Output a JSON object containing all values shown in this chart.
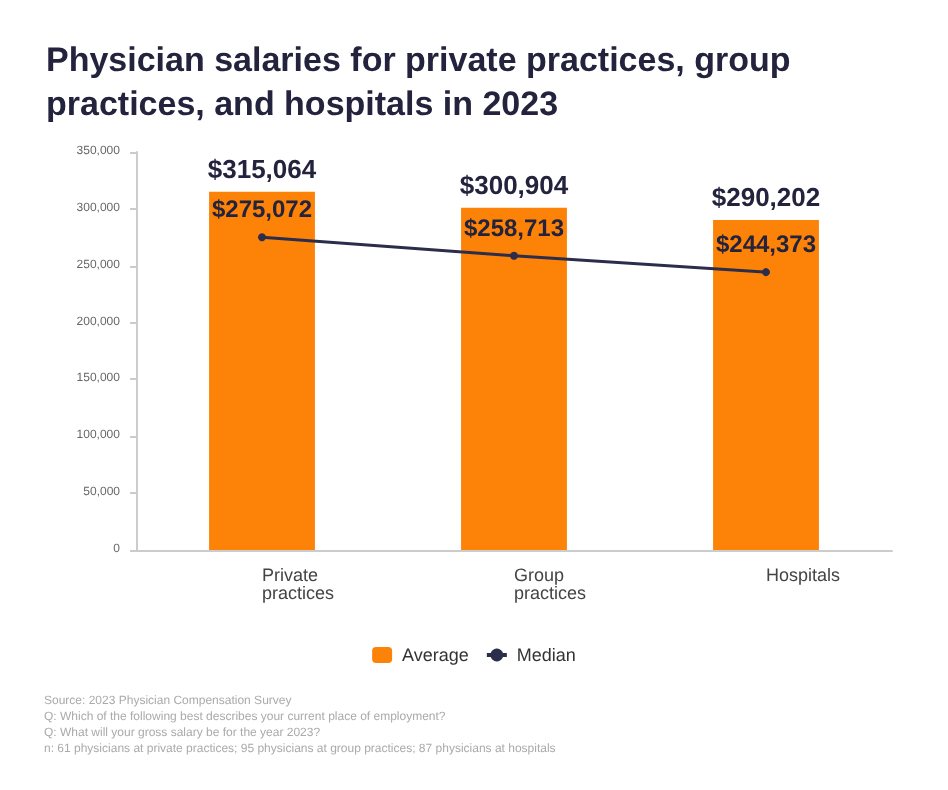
{
  "chart_data": {
    "type": "bar",
    "title": "Physician salaries for private practices, group practices, and hospitals in 2023",
    "categories": [
      "Private\npractices",
      "Group\npractices",
      "Hospitals"
    ],
    "series": [
      {
        "name": "Average",
        "color": "#fd8208",
        "values": [
          315064,
          300904,
          290202
        ],
        "value_labels": [
          "$315,064",
          "$300,904",
          "$290,202"
        ]
      },
      {
        "name": "Median",
        "type": "line",
        "color": "#2b2d4a",
        "values": [
          275072,
          258713,
          244373
        ],
        "value_labels": [
          "$275,072",
          "$258,713",
          "$244,373"
        ],
        "marker": "circle"
      }
    ],
    "ylim": [
      0,
      350000
    ],
    "yticks": [
      {
        "value": 0,
        "label": "0"
      },
      {
        "value": 50000,
        "label": "50,000"
      },
      {
        "value": 100000,
        "label": "100,000"
      },
      {
        "value": 150000,
        "label": "150,000"
      },
      {
        "value": 200000,
        "label": "200,000"
      },
      {
        "value": 250000,
        "label": "250,000"
      },
      {
        "value": 300000,
        "label": "300,000"
      },
      {
        "value": 350000,
        "label": "350,000"
      }
    ],
    "grid": false,
    "legend": "bottom",
    "annotations": [
      "Source: 2023 Physician Compensation Survey",
      "Q: Which of the following best describes your current place of employment?",
      "Q: What will your gross salary be for the year 2023?",
      "n: 61 physicians at private practices; 95 physicians at group practices; 87 physicians at hospitals"
    ]
  }
}
